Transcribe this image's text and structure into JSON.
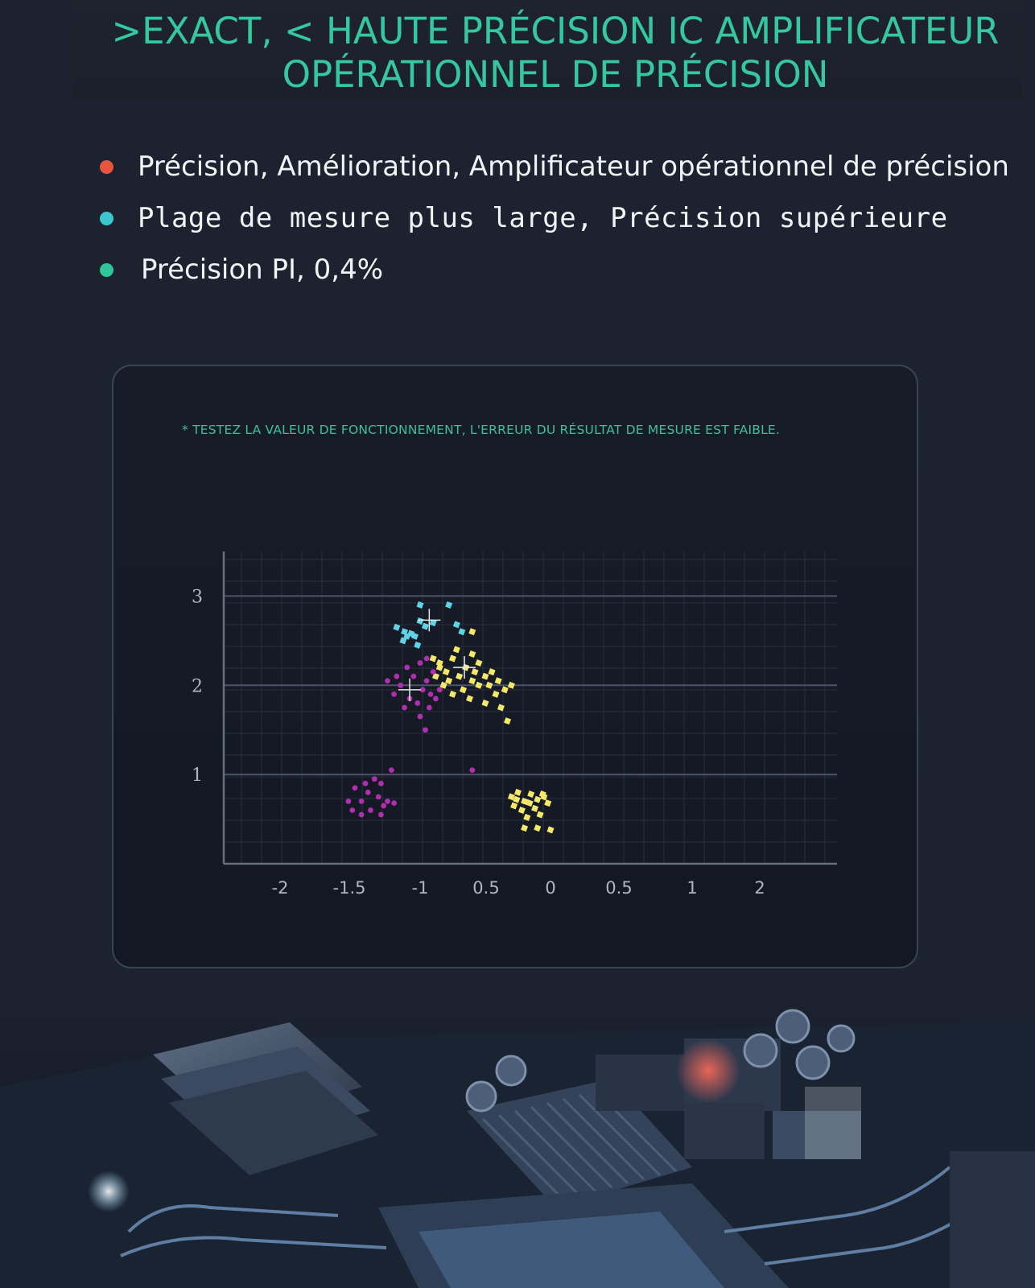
{
  "header": {
    "title_line1": ">EXACT, < HAUTE PRÉCISION IC AMPLIFICATEUR",
    "title_line2": "OPÉRATIONNEL DE PRÉCISION"
  },
  "bullets": [
    {
      "text": "Précision, Amélioration, Amplificateur opérationnel de précision",
      "color": "#e8553a"
    },
    {
      "text": "Plage de mesure plus large, Précision supérieure",
      "color": "#3cc6cf"
    },
    {
      "text": "Précision PI, 0,4%",
      "color": "#2fc79a"
    }
  ],
  "panel": {
    "caption": "* TESTEZ LA VALEUR DE FONCTIONNEMENT, L'ERREUR DU RÉSULTAT DE MESURE EST FAIBLE."
  },
  "chart_data": {
    "type": "scatter",
    "x_tick_labels": [
      "-2",
      "-1.5",
      "-1",
      "0.5",
      "0",
      "0.5",
      "1",
      "2"
    ],
    "y_tick_labels": [
      "1",
      "2",
      "3"
    ],
    "ylim": [
      0,
      3.5
    ],
    "grid": true,
    "colors": {
      "cyan": "#5fd3e6",
      "yellow": "#f3e86a",
      "magenta": "#b02fb0"
    },
    "series": [
      {
        "color": "cyan",
        "points": [
          [
            -1.0,
            2.9
          ],
          [
            -0.78,
            2.9
          ],
          [
            -1.12,
            2.6
          ],
          [
            -1.18,
            2.65
          ],
          [
            -1.07,
            2.58
          ],
          [
            -1.0,
            2.72
          ],
          [
            -0.96,
            2.66
          ],
          [
            -1.04,
            2.55
          ],
          [
            -1.13,
            2.5
          ],
          [
            -1.1,
            2.55
          ],
          [
            -0.9,
            2.7
          ],
          [
            -0.72,
            2.68
          ],
          [
            -0.68,
            2.6
          ],
          [
            -1.02,
            2.45
          ]
        ]
      },
      {
        "color": "yellow",
        "points": [
          [
            -0.9,
            2.3
          ],
          [
            -0.85,
            2.25
          ],
          [
            -0.8,
            2.15
          ],
          [
            -0.75,
            2.3
          ],
          [
            -0.7,
            2.1
          ],
          [
            -0.65,
            2.2
          ],
          [
            -0.6,
            2.05
          ],
          [
            -0.55,
            2.0
          ],
          [
            -0.5,
            2.1
          ],
          [
            -0.45,
            2.15
          ],
          [
            -0.4,
            2.05
          ],
          [
            -0.35,
            1.95
          ],
          [
            -0.3,
            2.0
          ],
          [
            -0.62,
            1.85
          ],
          [
            -0.75,
            1.9
          ],
          [
            -0.82,
            2.0
          ],
          [
            -0.88,
            2.1
          ],
          [
            -0.72,
            2.4
          ],
          [
            -0.6,
            2.35
          ],
          [
            -0.5,
            1.8
          ],
          [
            -0.42,
            1.9
          ],
          [
            -0.38,
            1.75
          ],
          [
            -0.33,
            1.6
          ],
          [
            -0.55,
            2.25
          ],
          [
            -0.67,
            1.95
          ],
          [
            -0.78,
            2.05
          ],
          [
            -0.58,
            2.15
          ],
          [
            -0.47,
            2.0
          ],
          [
            -0.6,
            2.6
          ],
          [
            -0.85,
            2.2
          ],
          [
            -0.3,
            0.75
          ],
          [
            -0.25,
            0.8
          ],
          [
            -0.2,
            0.7
          ],
          [
            -0.15,
            0.78
          ],
          [
            -0.1,
            0.72
          ],
          [
            -0.05,
            0.75
          ],
          [
            -0.02,
            0.68
          ],
          [
            -0.28,
            0.65
          ],
          [
            -0.22,
            0.6
          ],
          [
            -0.12,
            0.62
          ],
          [
            -0.18,
            0.52
          ],
          [
            -0.08,
            0.55
          ],
          [
            -0.26,
            0.72
          ],
          [
            -0.16,
            0.68
          ],
          [
            -0.1,
            0.4
          ],
          [
            0.0,
            0.38
          ],
          [
            -0.2,
            0.4
          ],
          [
            -0.06,
            0.78
          ]
        ]
      },
      {
        "color": "magenta",
        "points": [
          [
            -1.1,
            2.2
          ],
          [
            -1.05,
            2.1
          ],
          [
            -1.0,
            2.25
          ],
          [
            -0.95,
            2.05
          ],
          [
            -0.9,
            2.15
          ],
          [
            -0.85,
            1.95
          ],
          [
            -1.15,
            2.0
          ],
          [
            -1.2,
            1.9
          ],
          [
            -1.08,
            1.85
          ],
          [
            -1.02,
            1.8
          ],
          [
            -0.98,
            1.95
          ],
          [
            -0.93,
            1.75
          ],
          [
            -0.88,
            1.85
          ],
          [
            -1.0,
            1.65
          ],
          [
            -0.96,
            1.5
          ],
          [
            -0.92,
            1.9
          ],
          [
            -1.12,
            1.75
          ],
          [
            -1.18,
            2.1
          ],
          [
            -0.95,
            2.3
          ],
          [
            -1.25,
            2.05
          ],
          [
            -0.6,
            1.05
          ],
          [
            -1.35,
            0.95
          ],
          [
            -1.5,
            0.85
          ],
          [
            -1.45,
            0.7
          ],
          [
            -1.4,
            0.8
          ],
          [
            -1.38,
            0.6
          ],
          [
            -1.32,
            0.75
          ],
          [
            -1.28,
            0.65
          ],
          [
            -1.3,
            0.55
          ],
          [
            -1.45,
            0.55
          ],
          [
            -1.52,
            0.6
          ],
          [
            -1.55,
            0.7
          ],
          [
            -1.25,
            0.7
          ],
          [
            -1.2,
            0.68
          ],
          [
            -1.42,
            0.9
          ],
          [
            -1.3,
            0.9
          ],
          [
            -1.22,
            1.05
          ]
        ]
      }
    ]
  }
}
